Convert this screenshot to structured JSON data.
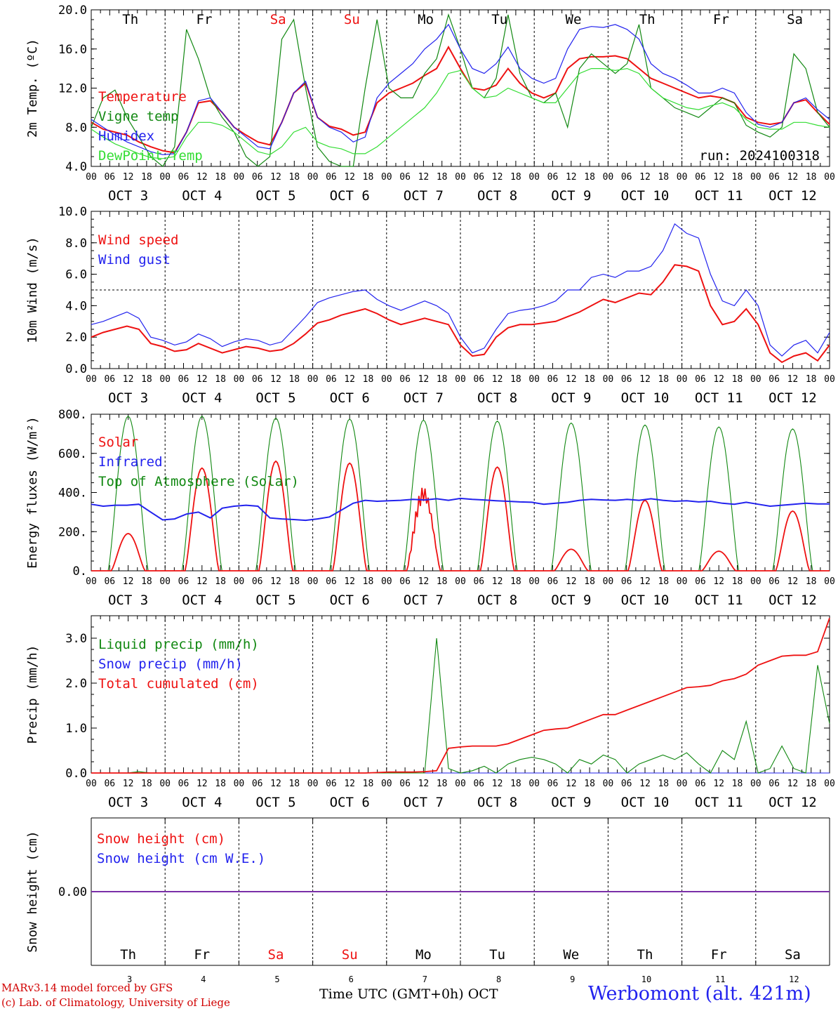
{
  "colors": {
    "red": "#ee1111",
    "green": "#118811",
    "blue": "#2222ee",
    "lightgreen": "#33dd33",
    "black": "#000000",
    "purple": "#7a2fa8"
  },
  "days": {
    "labels": [
      "Th",
      "Fr",
      "Sa",
      "Su",
      "Mo",
      "Tu",
      "We",
      "Th",
      "Fr",
      "Sa"
    ],
    "weekend": [
      false,
      false,
      true,
      true,
      false,
      false,
      false,
      false,
      false,
      false
    ],
    "dates": [
      "OCT 3",
      "OCT 4",
      "OCT 5",
      "OCT 6",
      "OCT 7",
      "OCT 8",
      "OCT 9",
      "OCT 10",
      "OCT 11",
      "OCT 12"
    ],
    "numbers": [
      "3",
      "4",
      "5",
      "6",
      "7",
      "8",
      "9",
      "10",
      "11",
      "12"
    ],
    "hour_ticks": [
      "00",
      "06",
      "12",
      "18"
    ]
  },
  "footer": {
    "credit1": "MARv3.14 model forced by GFS",
    "credit2": "(c) Lab. of Climatology, University of Liege",
    "xaxis": "Time UTC (GMT+0h) OCT",
    "station": "Werbomont (alt. 421m)"
  },
  "chart_data": [
    {
      "type": "line",
      "ylabel": "2m Temp. (ºC)",
      "ylim": [
        4,
        20
      ],
      "yticks": [
        "4.0",
        "8.0",
        "12.0",
        "16.0",
        "20.0"
      ],
      "annotation": "run: 2024100318",
      "series": [
        {
          "name": "Temperature",
          "color": "red",
          "values": [
            8.5,
            7.8,
            7.5,
            7.2,
            6.5,
            6.0,
            5.6,
            5.4,
            7.5,
            10.5,
            10.7,
            9.5,
            8.0,
            7.2,
            6.5,
            6.2,
            8.5,
            11.5,
            12.5,
            9.0,
            8.1,
            7.8,
            7.2,
            7.5,
            10.5,
            11.5,
            12.0,
            12.5,
            13.3,
            14.0,
            16.2,
            14.0,
            12.0,
            11.8,
            12.3,
            14.0,
            12.5,
            11.5,
            11.0,
            11.5,
            14.0,
            15.0,
            15.2,
            15.2,
            15.3,
            15.0,
            14.0,
            13.0,
            12.5,
            12.0,
            11.5,
            11.0,
            11.2,
            11.0,
            10.5,
            9.0,
            8.5,
            8.3,
            8.5,
            10.5,
            10.8,
            9.5,
            8.3
          ]
        },
        {
          "name": "Vigne temp",
          "color": "green",
          "values": [
            8.0,
            11.0,
            11.8,
            9.0,
            7.0,
            5.0,
            3.5,
            6.0,
            18.0,
            15.0,
            11.0,
            9.0,
            7.5,
            5.0,
            2.0,
            5.0,
            17.0,
            19.0,
            12.0,
            6.0,
            4.5,
            4.0,
            2.0,
            12.0,
            19.0,
            12.0,
            11.0,
            11.0,
            13.5,
            15.0,
            19.5,
            16.0,
            12.0,
            11.0,
            13.0,
            19.5,
            13.5,
            11.0,
            10.5,
            11.5,
            8.0,
            14.0,
            15.5,
            14.5,
            13.5,
            14.5,
            18.5,
            12.0,
            11.0,
            10.0,
            9.5,
            9.0,
            10.0,
            11.0,
            10.5,
            8.2,
            7.5,
            7.0,
            8.0,
            15.5,
            14.0,
            9.5,
            8.0
          ]
        },
        {
          "name": "Humidex",
          "color": "blue",
          "values": [
            8.8,
            8.0,
            7.2,
            6.5,
            6.0,
            5.5,
            5.2,
            5.3,
            7.5,
            10.7,
            11.0,
            9.5,
            8.0,
            7.0,
            6.0,
            5.8,
            8.5,
            11.5,
            12.7,
            9.0,
            8.0,
            7.5,
            6.5,
            7.0,
            11.0,
            12.5,
            13.5,
            14.5,
            16.0,
            17.0,
            18.5,
            16.0,
            14.0,
            13.5,
            14.5,
            16.2,
            14.0,
            13.0,
            12.5,
            13.0,
            16.0,
            18.0,
            18.3,
            18.2,
            18.5,
            18.0,
            17.0,
            14.5,
            13.5,
            13.0,
            12.3,
            11.5,
            11.5,
            12.0,
            11.5,
            9.5,
            8.3,
            8.0,
            8.5,
            10.5,
            11.0,
            9.8,
            8.8
          ]
        },
        {
          "name": "DewPoint Temp",
          "color": "lightgreen",
          "values": [
            7.8,
            7.0,
            6.3,
            5.8,
            5.3,
            4.9,
            4.8,
            5.0,
            7.0,
            8.5,
            8.5,
            8.2,
            7.5,
            6.5,
            5.5,
            5.2,
            6.0,
            7.5,
            8.0,
            6.5,
            6.0,
            5.8,
            5.3,
            5.3,
            6.0,
            7.0,
            8.0,
            9.0,
            10.0,
            11.5,
            13.5,
            13.8,
            12.0,
            11.0,
            11.2,
            12.0,
            11.5,
            11.0,
            10.5,
            10.5,
            12.0,
            13.5,
            14.0,
            14.0,
            13.8,
            14.0,
            13.5,
            12.0,
            11.0,
            10.5,
            10.0,
            9.8,
            10.2,
            10.5,
            10.0,
            8.8,
            8.0,
            7.8,
            7.8,
            8.5,
            8.5,
            8.2,
            8.0
          ]
        }
      ]
    },
    {
      "type": "line",
      "ylabel": "10m Wind (m/s)",
      "ylim": [
        0,
        10
      ],
      "yticks": [
        "0.0",
        "2.0",
        "4.0",
        "6.0",
        "8.0",
        "10.0"
      ],
      "reference_line": 5,
      "series": [
        {
          "name": "Wind speed",
          "color": "red",
          "values": [
            2.0,
            2.3,
            2.5,
            2.7,
            2.5,
            1.6,
            1.4,
            1.1,
            1.2,
            1.6,
            1.3,
            1.0,
            1.2,
            1.4,
            1.3,
            1.1,
            1.2,
            1.6,
            2.2,
            2.9,
            3.1,
            3.4,
            3.6,
            3.8,
            3.5,
            3.1,
            2.8,
            3.0,
            3.2,
            3.0,
            2.8,
            1.5,
            0.8,
            0.9,
            2.0,
            2.6,
            2.8,
            2.8,
            2.9,
            3.0,
            3.3,
            3.6,
            4.0,
            4.4,
            4.2,
            4.5,
            4.8,
            4.7,
            5.5,
            6.6,
            6.5,
            6.2,
            4.0,
            2.8,
            3.0,
            3.8,
            2.8,
            1.0,
            0.4,
            0.8,
            1.0,
            0.5,
            1.5
          ]
        },
        {
          "name": "Wind gust",
          "color": "blue",
          "values": [
            2.8,
            3.0,
            3.3,
            3.6,
            3.2,
            2.0,
            1.8,
            1.5,
            1.7,
            2.2,
            1.9,
            1.4,
            1.7,
            1.9,
            1.8,
            1.5,
            1.7,
            2.5,
            3.3,
            4.2,
            4.5,
            4.7,
            4.9,
            5.0,
            4.4,
            4.0,
            3.7,
            4.0,
            4.3,
            4.0,
            3.5,
            2.0,
            1.0,
            1.3,
            2.5,
            3.5,
            3.7,
            3.8,
            4.0,
            4.3,
            5.0,
            5.0,
            5.8,
            6.0,
            5.8,
            6.2,
            6.2,
            6.5,
            7.5,
            9.2,
            8.6,
            8.3,
            6.0,
            4.3,
            4.0,
            5.0,
            4.0,
            1.5,
            0.8,
            1.5,
            1.8,
            1.0,
            2.3
          ]
        }
      ]
    },
    {
      "type": "line",
      "ylabel": "Energy fluxes (W/m²)",
      "ylim": [
        0,
        800
      ],
      "yticks": [
        "0.",
        "200.",
        "400.",
        "600.",
        "800."
      ],
      "series": [
        {
          "name": "Solar",
          "color": "red",
          "values": [
            0,
            0,
            0,
            0,
            0,
            0,
            0,
            0,
            0,
            0,
            0,
            0,
            0,
            0,
            0,
            0,
            0,
            0,
            0,
            0,
            0,
            0,
            0,
            0,
            0,
            0,
            0,
            0,
            0,
            0,
            0,
            0,
            0,
            0,
            0,
            0,
            0,
            0,
            0,
            0,
            0,
            0,
            0,
            0,
            0,
            0,
            0,
            0,
            0,
            0,
            0,
            0,
            0,
            0,
            0,
            0,
            0,
            0,
            0,
            0,
            0,
            0,
            0
          ]
        },
        {
          "name": "Infrared",
          "color": "blue",
          "values": [
            340,
            330,
            335,
            335,
            340,
            300,
            260,
            265,
            290,
            300,
            270,
            320,
            330,
            335,
            330,
            270,
            265,
            262,
            258,
            265,
            275,
            310,
            345,
            360,
            355,
            358,
            360,
            365,
            362,
            368,
            360,
            370,
            365,
            362,
            358,
            355,
            352,
            350,
            340,
            345,
            350,
            360,
            365,
            362,
            360,
            365,
            360,
            368,
            360,
            355,
            358,
            352,
            355,
            345,
            340,
            350,
            340,
            330,
            335,
            340,
            345,
            342,
            342
          ]
        },
        {
          "name": "Top of Atmosphere (Solar)",
          "color": "green",
          "values": [
            0,
            0,
            0,
            0,
            0,
            0,
            0,
            0,
            0,
            0,
            0,
            0,
            0,
            0,
            0,
            0,
            0,
            0,
            0,
            0,
            0,
            0,
            0,
            0,
            0,
            0,
            0,
            0,
            0,
            0,
            0,
            0,
            0,
            0,
            0,
            0,
            0,
            0,
            0,
            0,
            0,
            0,
            0,
            0,
            0,
            0,
            0,
            0,
            0,
            0,
            0,
            0,
            0,
            0,
            0,
            0,
            0,
            0,
            0,
            0,
            0,
            0,
            0
          ]
        }
      ],
      "daily_peaks": {
        "solar": [
          190,
          525,
          560,
          550,
          450,
          530,
          110,
          360,
          100,
          305
        ],
        "toa": [
          790,
          790,
          780,
          775,
          770,
          765,
          755,
          745,
          735,
          725
        ]
      }
    },
    {
      "type": "line",
      "ylabel": "Precip (mm/h)",
      "ylim": [
        0,
        3.5
      ],
      "yticks": [
        "0.0",
        "1.0",
        "2.0",
        "3.0"
      ],
      "series": [
        {
          "name": "Liquid precip (mm/h)",
          "color": "green",
          "values": [
            0,
            0,
            0,
            0,
            0.03,
            0,
            0,
            0,
            0,
            0,
            0,
            0,
            0,
            0,
            0,
            0,
            0,
            0,
            0,
            0,
            0,
            0,
            0,
            0,
            0,
            0,
            0,
            0,
            0,
            3.0,
            0.1,
            0,
            0.05,
            0.15,
            0,
            0.2,
            0.3,
            0.35,
            0.3,
            0.2,
            0,
            0.3,
            0.2,
            0.4,
            0.3,
            0,
            0.2,
            0.3,
            0.4,
            0.3,
            0.45,
            0.2,
            0,
            0.5,
            0.3,
            1.15,
            0,
            0.1,
            0.6,
            0.1,
            0,
            2.4,
            1.1
          ]
        },
        {
          "name": "Snow precip (mm/h)",
          "color": "blue",
          "values": [
            0,
            0,
            0,
            0,
            0,
            0,
            0,
            0,
            0,
            0,
            0,
            0,
            0,
            0,
            0,
            0,
            0,
            0,
            0,
            0,
            0,
            0,
            0,
            0,
            0,
            0,
            0,
            0,
            0,
            0,
            0,
            0,
            0,
            0,
            0,
            0,
            0,
            0,
            0,
            0,
            0,
            0,
            0,
            0,
            0,
            0,
            0,
            0,
            0,
            0,
            0,
            0,
            0,
            0,
            0,
            0,
            0,
            0,
            0,
            0,
            0,
            0,
            0
          ]
        },
        {
          "name": "Total cumulated (cm)",
          "color": "red",
          "values": [
            0,
            0,
            0,
            0,
            0,
            0,
            0,
            0,
            0,
            0,
            0,
            0,
            0,
            0,
            0,
            0,
            0,
            0,
            0,
            0,
            0,
            0,
            0,
            0,
            0.01,
            0.02,
            0.02,
            0.02,
            0.03,
            0.05,
            0.55,
            0.58,
            0.6,
            0.6,
            0.6,
            0.65,
            0.75,
            0.85,
            0.95,
            0.98,
            1.0,
            1.1,
            1.2,
            1.3,
            1.3,
            1.4,
            1.5,
            1.6,
            1.7,
            1.8,
            1.9,
            1.92,
            1.95,
            2.05,
            2.1,
            2.2,
            2.4,
            2.5,
            2.6,
            2.62,
            2.62,
            2.7,
            3.45
          ]
        }
      ]
    },
    {
      "type": "line",
      "ylabel": "Snow height (cm)",
      "ylim": [
        -1,
        1
      ],
      "yticks": [
        "0.00"
      ],
      "series": [
        {
          "name": "Snow height (cm)",
          "color": "red",
          "values": [
            0,
            0
          ]
        },
        {
          "name": "Snow height (cm W.E.)",
          "color": "blue",
          "values": [
            0,
            0
          ]
        }
      ]
    }
  ]
}
